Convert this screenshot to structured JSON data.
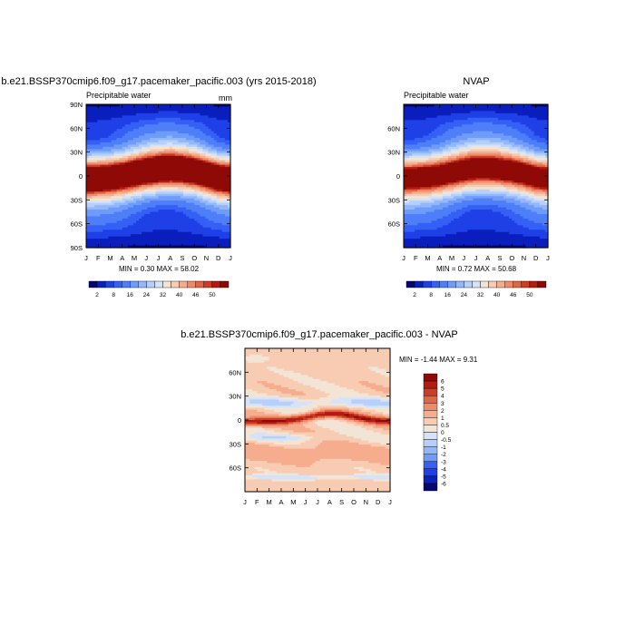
{
  "panels": {
    "model": {
      "title": "b.e21.BSSP370cmip6.f09_g17.pacemaker_pacific.003 (yrs 2015-2018)",
      "left_label": "Precipitable water",
      "right_label": "mm",
      "min_max": "MIN =   0.30 MAX =  58.02"
    },
    "obs": {
      "title": "NVAP",
      "left_label": "Precipitable water",
      "min_max": "MIN =   0.72 MAX =  50.68"
    },
    "diff": {
      "title": "b.e21.BSSP370cmip6.f09_g17.pacemaker_pacific.003 - NVAP",
      "min_max": "MIN =  -1.44 MAX =   9.31"
    }
  },
  "chart_data": [
    {
      "type": "heatmap",
      "panel": "model",
      "x_ticks": [
        "J",
        "F",
        "M",
        "A",
        "M",
        "J",
        "J",
        "A",
        "S",
        "O",
        "N",
        "D",
        "J"
      ],
      "y_ticks": [
        "90N",
        "60N",
        "30N",
        "0",
        "30S",
        "60S",
        "90S"
      ],
      "ylim": [
        -90,
        90
      ],
      "value_min": 0.3,
      "value_max": 58.02,
      "itcz_lat_by_month": [
        -4,
        -3,
        -2,
        0,
        3,
        6,
        8,
        9,
        8,
        6,
        2,
        -2,
        -4
      ]
    },
    {
      "type": "heatmap",
      "panel": "obs",
      "x_ticks": [
        "J",
        "F",
        "M",
        "A",
        "M",
        "J",
        "J",
        "A",
        "S",
        "O",
        "N",
        "D",
        "J"
      ],
      "y_ticks": [
        "60N",
        "30N",
        "0",
        "30S",
        "60S"
      ],
      "ylim": [
        -90,
        90
      ],
      "value_min": 0.72,
      "value_max": 50.68,
      "itcz_lat_by_month": [
        -3,
        -2,
        -1,
        1,
        4,
        7,
        9,
        9,
        8,
        6,
        3,
        -1,
        -3
      ]
    },
    {
      "type": "heatmap",
      "panel": "diff",
      "x_ticks": [
        "J",
        "F",
        "M",
        "A",
        "M",
        "J",
        "J",
        "A",
        "S",
        "O",
        "N",
        "D",
        "J"
      ],
      "y_ticks": [
        "60N",
        "30N",
        "0",
        "30S",
        "60S"
      ],
      "ylim": [
        -90,
        90
      ],
      "value_min": -1.44,
      "value_max": 9.31
    }
  ],
  "colorbars": {
    "precip": {
      "labels": [
        "2",
        "8",
        "16",
        "24",
        "32",
        "40",
        "46",
        "50"
      ],
      "colors": [
        "#06066e",
        "#0a1fbe",
        "#1e40e6",
        "#3560f5",
        "#4e7ff8",
        "#6f9cfa",
        "#92b8fb",
        "#b6d0fb",
        "#d6e3f7",
        "#f3e5d6",
        "#f8ccb3",
        "#f6ad8e",
        "#ee8b6a",
        "#e06547",
        "#cc3d26",
        "#b31c10",
        "#8f0a06"
      ]
    },
    "diff": {
      "labels": [
        "6",
        "5",
        "4",
        "3",
        "2",
        "1",
        "0.5",
        "0",
        "-0.5",
        "-1",
        "-2",
        "-3",
        "-4",
        "-5",
        "-6"
      ],
      "colors": [
        "#8f0a06",
        "#b31c10",
        "#cc3d26",
        "#e06547",
        "#ee8b6a",
        "#f6ad8e",
        "#f8ccb3",
        "#f3e5d6",
        "#d6e3f7",
        "#b6d0fb",
        "#92b8fb",
        "#6f9cfa",
        "#3560f5",
        "#1e40e6",
        "#0a1fbe",
        "#06066e"
      ]
    }
  }
}
